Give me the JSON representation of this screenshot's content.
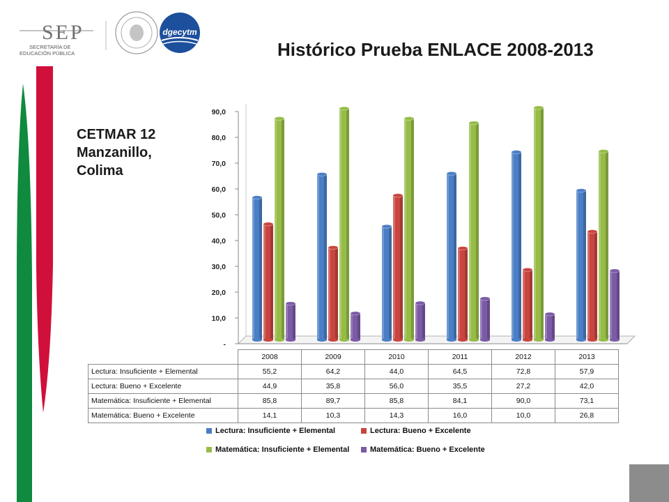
{
  "header": {
    "sep_logo_text": "SEP",
    "sep_subtitle_1": "SECRETARÍA DE",
    "sep_subtitle_2": "EDUCACIÓN PÚBLICA",
    "dgecytm_logo_text": "dgecytm"
  },
  "title": "Histórico Prueba ENLACE 2008-2013",
  "school": {
    "line1": "CETMAR 12",
    "line2": "Manzanillo,",
    "line3": "Colima"
  },
  "colors": {
    "accent_green": "#0f8a3e",
    "accent_red": "#d0103a",
    "corner_gray": "#8c8c8c"
  },
  "chart_data": {
    "type": "bar",
    "categories": [
      "2008",
      "2009",
      "2010",
      "2011",
      "2012",
      "2013"
    ],
    "series": [
      {
        "name": "Lectura: Insuficiente + Elemental",
        "color": "#4a7ec5",
        "values": [
          55.2,
          64.2,
          44.0,
          64.5,
          72.8,
          57.9
        ],
        "labels": [
          "55,2",
          "64,2",
          "44,0",
          "64,5",
          "72,8",
          "57,9"
        ]
      },
      {
        "name": "Lectura: Bueno + Excelente",
        "color": "#c9453f",
        "values": [
          44.9,
          35.8,
          56.0,
          35.5,
          27.2,
          42.0
        ],
        "labels": [
          "44,9",
          "35,8",
          "56,0",
          "35,5",
          "27,2",
          "42,0"
        ]
      },
      {
        "name": "Matemática: Insuficiente + Elemental",
        "color": "#96bc47",
        "values": [
          85.8,
          89.7,
          85.8,
          84.1,
          90.0,
          73.1
        ],
        "labels": [
          "85,8",
          "89,7",
          "85,8",
          "84,1",
          "90,0",
          "73,1"
        ]
      },
      {
        "name": "Matemática: Bueno + Excelente",
        "color": "#7b5aa6",
        "values": [
          14.1,
          10.3,
          14.3,
          16.0,
          10.0,
          26.8
        ],
        "labels": [
          "14,1",
          "10,3",
          "14,3",
          "16,0",
          "10,0",
          "26,8"
        ]
      }
    ],
    "y_ticks": [
      0,
      10,
      20,
      30,
      40,
      50,
      60,
      70,
      80,
      90
    ],
    "y_tick_labels": [
      "-",
      "10,0",
      "20,0",
      "30,0",
      "40,0",
      "50,0",
      "60,0",
      "70,0",
      "80,0",
      "90,0"
    ],
    "ylim": [
      0,
      90
    ],
    "grid": false,
    "legend": "bottom",
    "data_table": true
  }
}
